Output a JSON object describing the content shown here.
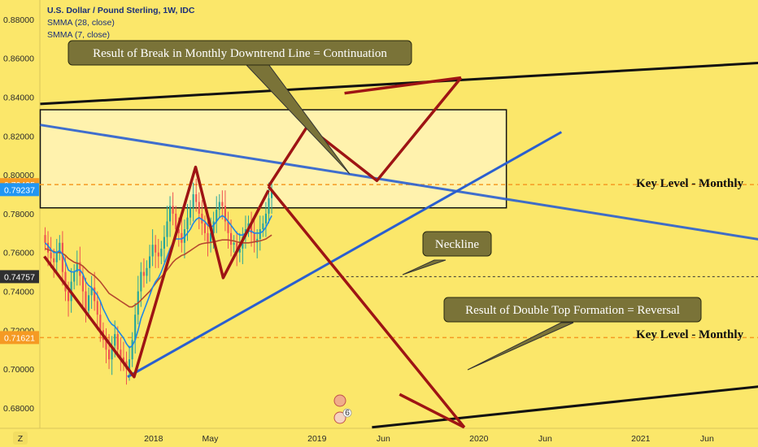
{
  "header": {
    "symbol": "U.S. Dollar / Pound Sterling, 1W, IDC",
    "indicator_1": "SMMA (28, close)",
    "indicator_2": "SMMA (7, close)"
  },
  "chart_data": {
    "type": "candlestick",
    "ylim": [
      0.6695,
      0.89
    ],
    "y_ticks": [
      0.68,
      0.7,
      0.72,
      0.74,
      0.76,
      0.78,
      0.8,
      0.82,
      0.84,
      0.86,
      0.88
    ],
    "y_tick_labels": [
      "0.68000",
      "0.70000",
      "0.72000",
      "0.74000",
      "0.76000",
      "0.78000",
      "0.80000",
      "0.82000",
      "0.84000",
      "0.86000",
      "0.88000"
    ],
    "x_ticks": [
      {
        "label": "2018",
        "pos": 0.2
      },
      {
        "label": "May",
        "pos": 0.55
      },
      {
        "label": "2019",
        "pos": 1.21
      },
      {
        "label": "Jun",
        "pos": 1.62
      },
      {
        "label": "2020",
        "pos": 2.21
      },
      {
        "label": "Jun",
        "pos": 2.62
      },
      {
        "label": "2021",
        "pos": 3.21
      },
      {
        "label": "Jun",
        "pos": 3.62
      }
    ],
    "price_labels": [
      {
        "value": "0.79495",
        "y": 0.79495,
        "color": "#f59a23"
      },
      {
        "value": "0.79237",
        "y": 0.79237,
        "color": "#2196f3"
      },
      {
        "value": "0.74757",
        "y": 0.74757,
        "color": "#2f2f2f"
      },
      {
        "value": "0.71621",
        "y": 0.71621,
        "color": "#f59a23"
      }
    ],
    "key_levels": [
      {
        "label": "Key Level - Monthly",
        "y": 0.79495
      },
      {
        "label": "Key Level - Monthly",
        "y": 0.71621
      }
    ],
    "neckline_value": 0.74757,
    "zone": {
      "x0": -0.5,
      "x1": 2.38,
      "y0": 0.783,
      "y1": 0.8335
    },
    "closes": [
      0.765,
      0.76,
      0.757,
      0.755,
      0.76,
      0.765,
      0.75,
      0.74,
      0.735,
      0.745,
      0.75,
      0.755,
      0.748,
      0.74,
      0.73,
      0.738,
      0.742,
      0.735,
      0.728,
      0.72,
      0.715,
      0.71,
      0.705,
      0.712,
      0.718,
      0.71,
      0.706,
      0.704,
      0.7,
      0.705,
      0.715,
      0.728,
      0.74,
      0.75,
      0.748,
      0.752,
      0.758,
      0.764,
      0.76,
      0.758,
      0.762,
      0.768,
      0.776,
      0.784,
      0.78,
      0.772,
      0.77,
      0.765,
      0.772,
      0.778,
      0.783,
      0.79,
      0.786,
      0.78,
      0.775,
      0.77,
      0.765,
      0.77,
      0.776,
      0.782,
      0.786,
      0.784,
      0.776,
      0.77,
      0.764,
      0.765,
      0.76,
      0.762,
      0.768,
      0.772,
      0.775,
      0.77,
      0.765,
      0.767,
      0.772,
      0.775,
      0.78,
      0.788,
      0.792
    ],
    "smma_7": [
      0.765,
      0.7635,
      0.7615,
      0.76,
      0.76,
      0.761,
      0.759,
      0.755,
      0.751,
      0.75,
      0.75,
      0.751,
      0.751,
      0.749,
      0.745,
      0.743,
      0.742,
      0.74,
      0.738,
      0.735,
      0.731,
      0.728,
      0.725,
      0.723,
      0.722,
      0.72,
      0.718,
      0.716,
      0.713,
      0.711,
      0.712,
      0.715,
      0.72,
      0.726,
      0.73,
      0.734,
      0.738,
      0.742,
      0.745,
      0.747,
      0.75,
      0.754,
      0.758,
      0.762,
      0.765,
      0.767,
      0.767,
      0.767,
      0.768,
      0.77,
      0.772,
      0.775,
      0.777,
      0.778,
      0.777,
      0.776,
      0.774,
      0.773,
      0.774,
      0.776,
      0.778,
      0.779,
      0.778,
      0.776,
      0.774,
      0.772,
      0.77,
      0.769,
      0.769,
      0.77,
      0.771,
      0.771,
      0.77,
      0.77,
      0.77,
      0.771,
      0.773,
      0.776,
      0.779
    ],
    "smma_28": [
      0.762,
      0.7615,
      0.761,
      0.7605,
      0.76,
      0.76,
      0.7595,
      0.7585,
      0.757,
      0.756,
      0.755,
      0.7545,
      0.754,
      0.753,
      0.7515,
      0.75,
      0.749,
      0.748,
      0.7465,
      0.745,
      0.743,
      0.741,
      0.739,
      0.738,
      0.737,
      0.736,
      0.735,
      0.734,
      0.733,
      0.732,
      0.732,
      0.733,
      0.734,
      0.7355,
      0.737,
      0.7385,
      0.74,
      0.742,
      0.744,
      0.746,
      0.7475,
      0.749,
      0.751,
      0.753,
      0.755,
      0.7565,
      0.7575,
      0.7585,
      0.759,
      0.76,
      0.761,
      0.762,
      0.763,
      0.764,
      0.7645,
      0.7648,
      0.765,
      0.7652,
      0.7655,
      0.7658,
      0.7662,
      0.7665,
      0.7665,
      0.7665,
      0.7662,
      0.766,
      0.7655,
      0.7652,
      0.765,
      0.765,
      0.765,
      0.7652,
      0.7655,
      0.7658,
      0.766,
      0.7665,
      0.767,
      0.768,
      0.769
    ],
    "red_zigzag_past": [
      [
        -0.475,
        0.758
      ],
      [
        0.08,
        0.696
      ],
      [
        0.46,
        0.804
      ],
      [
        0.63,
        0.747
      ],
      [
        0.91,
        0.792
      ]
    ],
    "red_projection_up": [
      [
        0.91,
        0.794
      ],
      [
        1.15,
        0.825
      ],
      [
        1.58,
        0.797
      ],
      [
        2.1,
        0.85
      ]
    ],
    "red_projection_up_start": [
      [
        1.38,
        0.842
      ],
      [
        2.1,
        0.85
      ]
    ],
    "red_projection_down": [
      [
        0.91,
        0.794
      ],
      [
        2.12,
        0.67
      ]
    ],
    "red_projection_down_end": [
      [
        1.72,
        0.687
      ],
      [
        2.12,
        0.67
      ]
    ],
    "trendline_up_blue": [
      [
        0.04,
        0.696
      ],
      [
        2.72,
        0.822
      ]
    ],
    "trendline_down_blue": [
      [
        -0.5,
        0.8257
      ],
      [
        4.45,
        0.76
      ]
    ],
    "trendline_black_top": [
      [
        -0.5,
        0.8365
      ],
      [
        4.45,
        0.86
      ]
    ],
    "trendline_black_bottom": [
      [
        1.55,
        0.67
      ],
      [
        4.45,
        0.6955
      ]
    ],
    "callouts": [
      {
        "text": "Result of Break in Monthly Downtrend Line = Continuation"
      },
      {
        "text": "Neckline"
      },
      {
        "text": "Result of Double Top Formation = Reversal"
      }
    ],
    "badge_number": "6",
    "corner_label": "Z"
  }
}
